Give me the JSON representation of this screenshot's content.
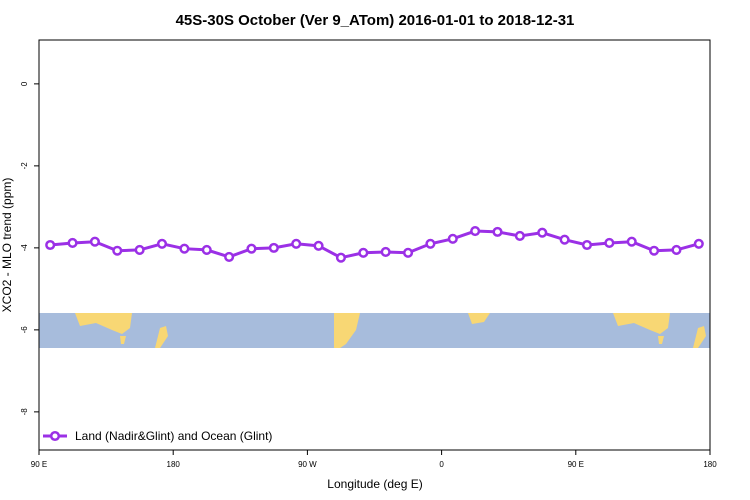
{
  "chart_data": {
    "type": "line",
    "title": "45S-30S October (Ver 9_ATom)   2016-01-01 to 2018-12-31",
    "x_label": "Longitude (deg E)",
    "y_label": "XCO2 - MLO trend (ppm)",
    "x": [
      97.5,
      112.5,
      127.5,
      142.5,
      157.5,
      172.5,
      187.5,
      202.5,
      217.5,
      232.5,
      247.5,
      262.5,
      277.5,
      292.5,
      307.5,
      322.5,
      337.5,
      352.5,
      367.5,
      382.5,
      397.5,
      412.5,
      427.5,
      442.5,
      457.5,
      472.5,
      487.5,
      502.5,
      517.5,
      532.5
    ],
    "series": [
      {
        "name": "Land (Nadir&Glint) and Ocean (Glint)",
        "color": "#9b30e6",
        "values": [
          -3.93,
          -3.88,
          -3.85,
          -4.07,
          -4.05,
          -3.9,
          -4.02,
          -4.05,
          -4.22,
          -4.02,
          -4.0,
          -3.9,
          -3.95,
          -4.24,
          -4.12,
          -4.1,
          -4.12,
          -3.9,
          -3.78,
          -3.59,
          -3.61,
          -3.71,
          -3.63,
          -3.8,
          -3.93,
          -3.88,
          -3.85,
          -4.07,
          -4.05,
          -3.9
        ]
      }
    ],
    "xlim": [
      90,
      540
    ],
    "xticks": [
      {
        "value": 90,
        "label": "90 E"
      },
      180,
      {
        "value": 270,
        "label": "90 W"
      },
      {
        "value": 360,
        "label": "0"
      },
      {
        "value": 450,
        "label": "90 E"
      },
      {
        "value": 540,
        "label": "180"
      }
    ],
    "ylim": [
      -8.93,
      1.07
    ],
    "yticks": [
      0,
      -2,
      -4,
      -6,
      -8
    ],
    "legend": "bottom-left"
  }
}
